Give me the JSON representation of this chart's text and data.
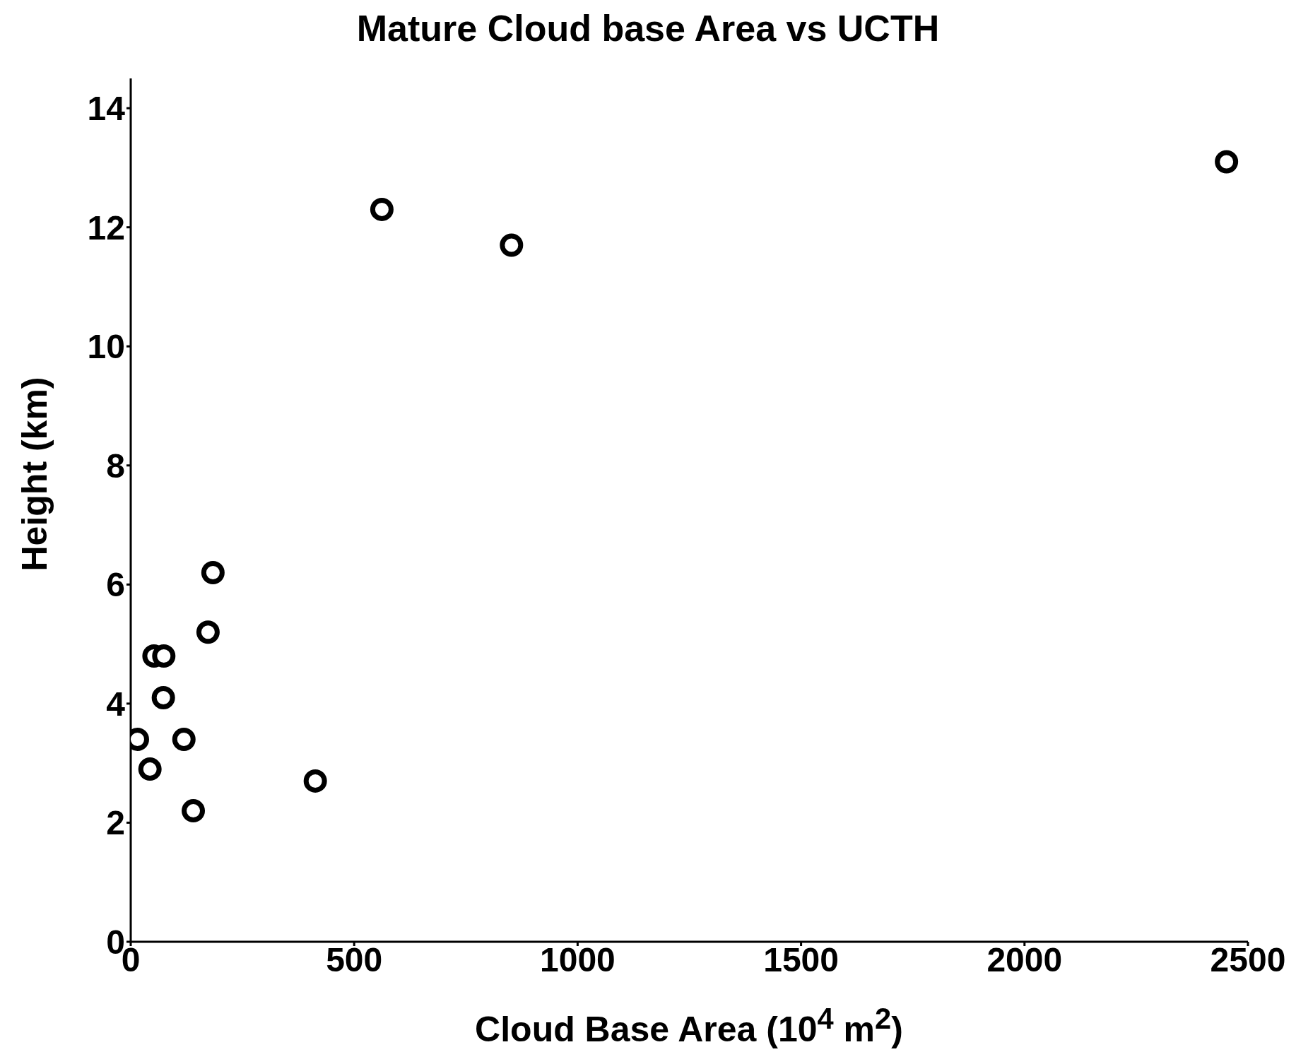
{
  "chart_data": {
    "type": "scatter",
    "title": "Mature Cloud base Area vs UCTH",
    "xlabel": "Cloud Base Area (10$^{4}$ m$^{2}$)",
    "ylabel": "Height (km)",
    "x": [
      2452,
      562,
      852,
      184,
      173,
      52,
      74,
      73,
      15,
      119,
      43,
      140,
      413
    ],
    "values": [
      13.1,
      12.3,
      11.7,
      6.2,
      5.2,
      4.8,
      4.8,
      4.1,
      3.4,
      3.4,
      2.9,
      2.2,
      2.7
    ],
    "color": "#000000",
    "marker": "circle",
    "xlim": [
      0,
      2500
    ],
    "xticks": [
      0,
      500,
      1000,
      1500,
      2000,
      2500
    ],
    "ylim": [
      0,
      14.5
    ],
    "yticks": [
      0,
      2,
      4,
      6,
      8,
      10,
      12,
      14
    ]
  }
}
